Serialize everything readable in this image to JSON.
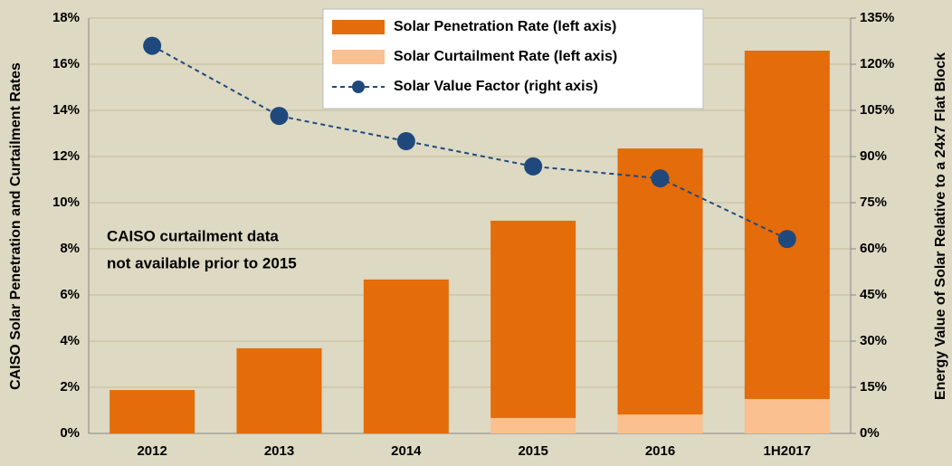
{
  "chart_data": {
    "type": "bar",
    "categories": [
      "2012",
      "2013",
      "2014",
      "2015",
      "2016",
      "1H2017"
    ],
    "series": [
      {
        "name": "Solar Penetration Rate (left axis)",
        "type": "bar",
        "stack": "bottom-second",
        "color": "#e46c0a",
        "values": [
          1.88,
          3.69,
          6.67,
          8.55,
          11.53,
          15.1
        ]
      },
      {
        "name": "Solar Curtailment Rate (left axis)",
        "type": "bar",
        "stack": "bottom-first",
        "color": "#fac090",
        "values": [
          null,
          null,
          null,
          0.67,
          0.82,
          1.49
        ]
      },
      {
        "name": "Solar Value Factor (right axis)",
        "type": "line",
        "axis": "y2",
        "color": "#1f497d",
        "values": [
          126,
          103.2,
          95,
          86.8,
          82.9,
          63.2
        ]
      }
    ],
    "ylabel": "CAISO Solar Penetration and Curtailment Rates",
    "y2label": "Energy Value of Solar Relative to a 24x7 Flat Block",
    "annotation": [
      "CAISO curtailment data",
      "not available prior to 2015"
    ],
    "ylim": [
      0,
      18
    ],
    "yticks": [
      {
        "value": 0,
        "label": "0%"
      },
      {
        "value": 2,
        "label": "2%"
      },
      {
        "value": 4,
        "label": "4%"
      },
      {
        "value": 6,
        "label": "6%"
      },
      {
        "value": 8,
        "label": "8%"
      },
      {
        "value": 10,
        "label": "10%"
      },
      {
        "value": 12,
        "label": "12%"
      },
      {
        "value": 14,
        "label": "14%"
      },
      {
        "value": 16,
        "label": "16%"
      },
      {
        "value": 18,
        "label": "18%"
      }
    ],
    "y2lim": [
      0,
      135
    ],
    "y2ticks": [
      {
        "value": 0,
        "label": "0%"
      },
      {
        "value": 15,
        "label": "15%"
      },
      {
        "value": 30,
        "label": "30%"
      },
      {
        "value": 45,
        "label": "45%"
      },
      {
        "value": 60,
        "label": "60%"
      },
      {
        "value": 75,
        "label": "75%"
      },
      {
        "value": 90,
        "label": "90%"
      },
      {
        "value": 105,
        "label": "105%"
      },
      {
        "value": 120,
        "label": "120%"
      },
      {
        "value": 135,
        "label": "135%"
      }
    ],
    "grid": true,
    "legend": "top"
  }
}
